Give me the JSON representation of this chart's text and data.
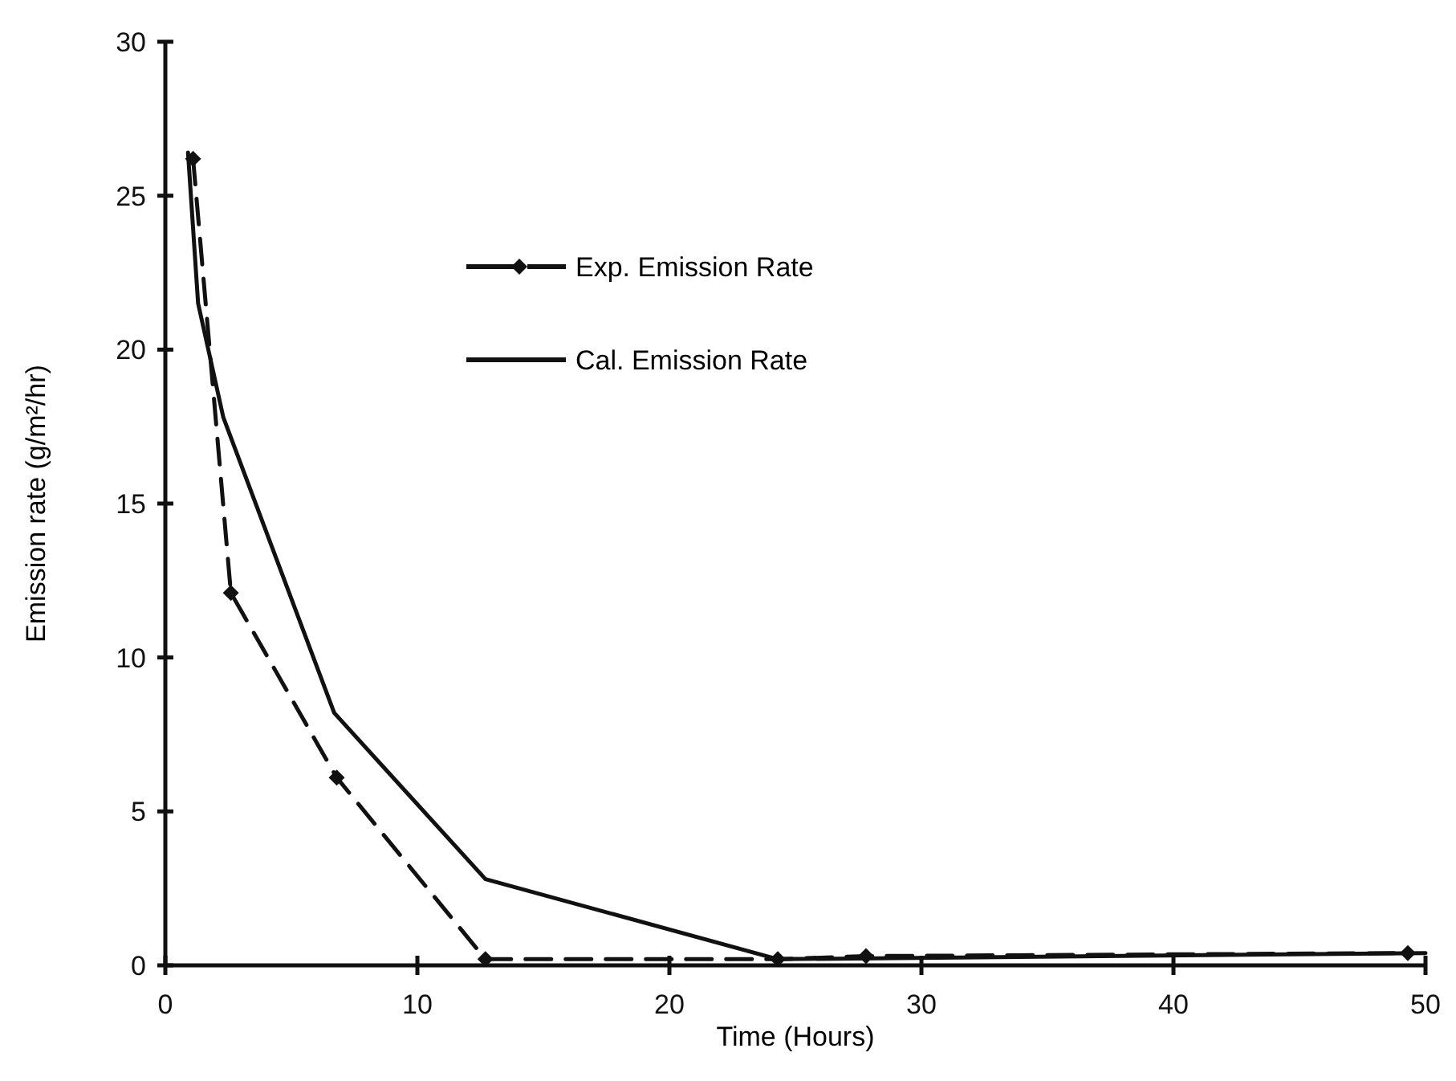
{
  "chart_data": {
    "type": "line",
    "xlabel": "Time (Hours)",
    "ylabel": "Emission rate (g/m²/hr)",
    "xlim": [
      0,
      50
    ],
    "xticks": [
      0,
      10,
      20,
      30,
      40,
      50
    ],
    "ylim": [
      0,
      30
    ],
    "yticks": [
      0,
      5,
      10,
      15,
      20,
      25,
      30
    ],
    "grid": false,
    "legend": "top",
    "series": [
      {
        "name": "Exp. Emission Rate",
        "color": "#111111",
        "line_style": "dashed",
        "marker": "diamond",
        "x": [
          1.1,
          2.6,
          6.8,
          12.7,
          24.3,
          27.8,
          49.3
        ],
        "values": [
          26.2,
          12.1,
          6.1,
          0.2,
          0.2,
          0.3,
          0.4
        ]
      },
      {
        "name": "Cal. Emission Rate",
        "color": "#111111",
        "line_style": "solid",
        "marker": "none",
        "x": [
          0.9,
          1.3,
          2.3,
          6.7,
          12.7,
          24.3,
          50
        ],
        "values": [
          26.4,
          21.5,
          17.8,
          8.2,
          2.8,
          0.2,
          0.4
        ]
      }
    ]
  }
}
